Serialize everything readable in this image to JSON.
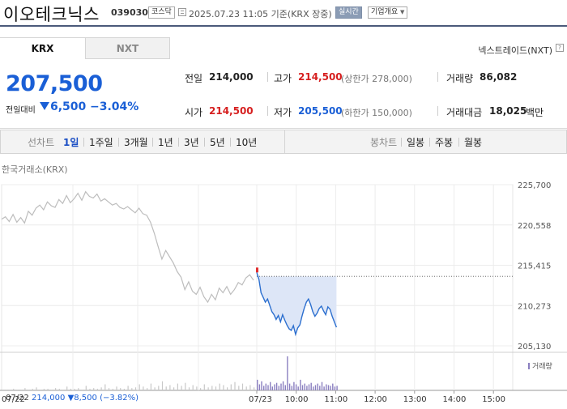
{
  "header": {
    "name": "이오테크닉스",
    "code": "039030",
    "market": "코스닥",
    "timestamp": "2025.07.23 11:05 기준(KRX 장중)",
    "live_label": "실시간",
    "company_info_label": "기업개요"
  },
  "tabs": [
    {
      "label": "KRX",
      "active": true
    },
    {
      "label": "NXT",
      "active": false
    }
  ],
  "nxt_link": "넥스트레이드(NXT)",
  "nxt_help": "?",
  "summary": {
    "price": "207,500",
    "change_label": "전일대비",
    "change_value": "6,500",
    "change_pct": "−3.04%",
    "direction": "down",
    "prev_close": {
      "label": "전일",
      "value": "214,000"
    },
    "high": {
      "label": "고가",
      "value": "214,500",
      "limit_text": "(상한가 278,000)"
    },
    "volume": {
      "label": "거래량",
      "value": "86,082"
    },
    "open": {
      "label": "시가",
      "value": "214,500"
    },
    "low": {
      "label": "저가",
      "value": "205,500",
      "limit_text": "(하한가 150,000)"
    },
    "amount": {
      "label": "거래대금",
      "value": "18,025",
      "unit": "백만"
    }
  },
  "period_bar": {
    "line_label": "선차트",
    "line_periods": [
      "1일",
      "1주일",
      "3개월",
      "1년",
      "3년",
      "5년",
      "10년"
    ],
    "active_period": "1일",
    "candle_label": "봉차트",
    "candle_periods": [
      "일봉",
      "주봉",
      "월봉"
    ]
  },
  "chart_data": {
    "type": "line",
    "source_label": "한국거래소(KRX)",
    "y_ticks": [
      "225,700",
      "220,558",
      "215,415",
      "210,273",
      "205,130"
    ],
    "ylim": [
      205130,
      225700
    ],
    "x_ticks": [
      "07/22",
      "07/23",
      "10:00",
      "11:00",
      "12:00",
      "13:00",
      "14:00",
      "15:00"
    ],
    "prev_day_series": {
      "name": "07/22",
      "values": [
        221300,
        221600,
        221000,
        221900,
        220900,
        221500,
        220800,
        222300,
        221800,
        222700,
        223100,
        222500,
        223500,
        223000,
        222800,
        223800,
        223300,
        224300,
        223400,
        223900,
        224600,
        223700,
        224800,
        224200,
        224000,
        224500,
        223600,
        223900,
        223500,
        223100,
        223300,
        222800,
        222600,
        222900,
        222500,
        222100,
        222700,
        222000,
        221800,
        220900,
        219500,
        217800,
        216200,
        217300,
        216500,
        215700,
        214600,
        213900,
        212300,
        213300,
        212100,
        211700,
        212600,
        211400,
        210700,
        211700,
        211000,
        212500,
        211900,
        212700,
        211700,
        212300,
        213200,
        212900,
        213800,
        214200,
        213500
      ]
    },
    "today_series": {
      "name": "07/23",
      "values": [
        214500,
        213600,
        211900,
        211300,
        210700,
        211100,
        210300,
        209500,
        209100,
        208500,
        209000,
        208200,
        209100,
        208400,
        207800,
        207300,
        207100,
        207700,
        206600,
        207400,
        207800,
        208900,
        209900,
        210700,
        211100,
        210400,
        209500,
        208900,
        209300,
        209900,
        210200,
        209600,
        209100,
        210100,
        209800,
        208900,
        208200,
        207500
      ]
    },
    "reference_line": 214000,
    "volume_label": "거래량",
    "volume_prev": [
      1,
      1,
      1,
      2,
      1,
      1,
      3,
      1,
      2,
      4,
      1,
      2,
      2,
      1,
      3,
      2,
      1,
      5,
      2,
      2,
      3,
      1,
      6,
      2,
      3,
      2,
      4,
      8,
      3,
      2,
      5,
      3,
      2,
      6,
      3,
      4,
      8,
      5,
      3,
      9,
      4,
      6,
      12,
      5,
      7,
      4,
      9,
      6,
      10,
      4,
      7,
      5,
      3,
      8,
      4,
      6,
      5,
      9,
      7,
      4,
      8,
      11,
      6,
      9,
      5,
      7,
      4
    ],
    "volume_today": [
      14,
      8,
      12,
      6,
      9,
      7,
      11,
      5,
      8,
      10,
      6,
      9,
      12,
      7,
      45,
      9,
      6,
      11,
      8,
      5,
      14,
      7,
      9,
      6,
      8,
      10,
      5,
      7,
      9,
      6,
      11,
      5,
      8,
      7,
      6,
      9,
      5,
      6
    ],
    "footer": {
      "date": "07/22",
      "close": "214,000",
      "change": "▼8,500",
      "pct": "(−3.82%)"
    }
  }
}
